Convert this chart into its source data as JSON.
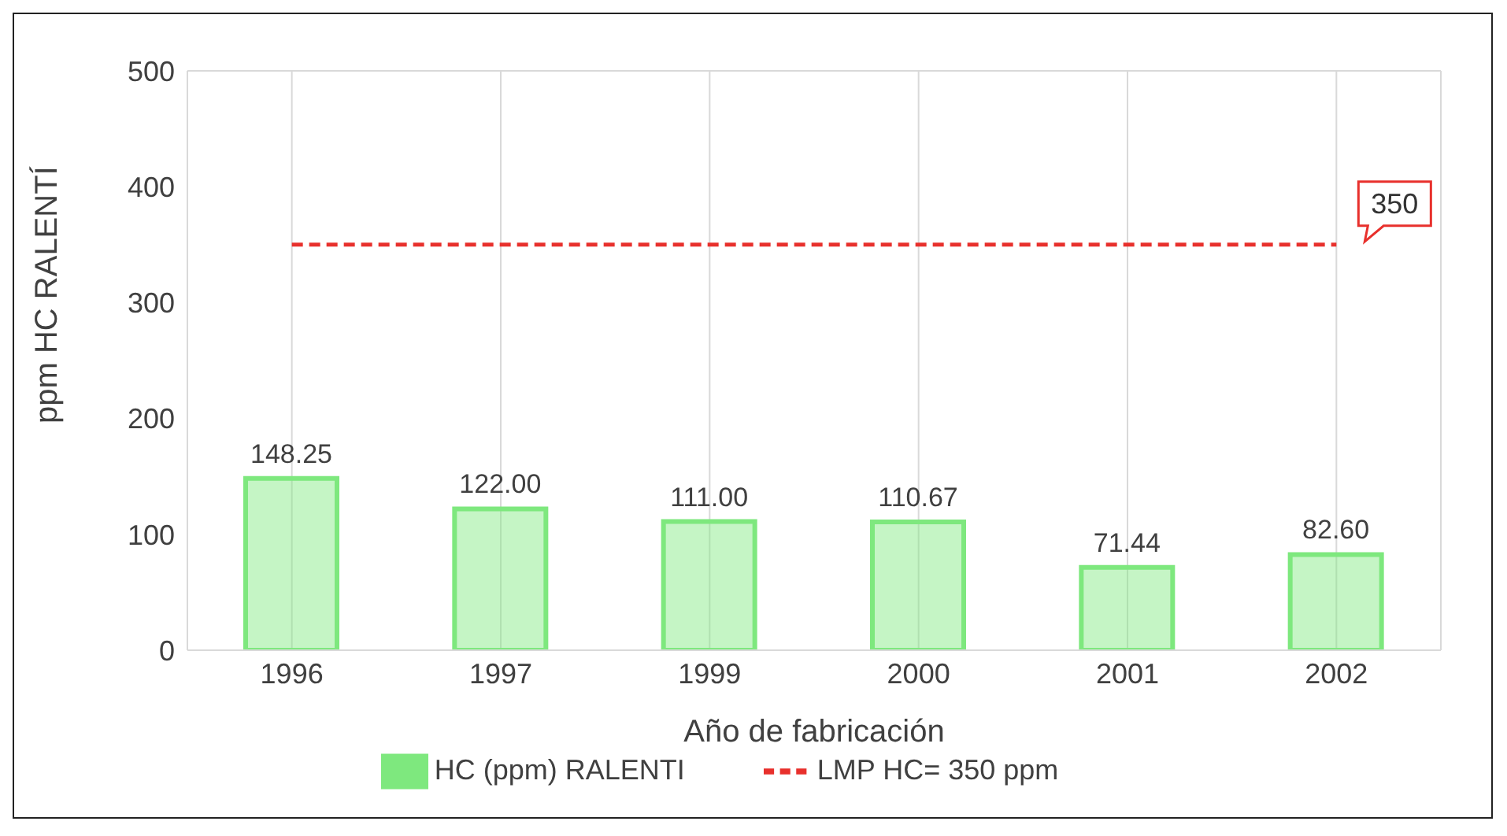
{
  "chart_data": {
    "type": "bar",
    "xlabel": "Año de fabricación",
    "ylabel": "ppm HC RALENTÍ",
    "categories": [
      "1996",
      "1997",
      "1999",
      "2000",
      "2001",
      "2002"
    ],
    "series": [
      {
        "name": "HC (ppm) RALENTI",
        "color": "#7ee87e",
        "values": [
          148.25,
          122.0,
          111.0,
          110.67,
          71.44,
          82.6
        ],
        "value_labels": [
          "148.25",
          "122.00",
          "111.00",
          "110.67",
          "71.44",
          "82.60"
        ]
      },
      {
        "name": "LMP HC= 350 ppm",
        "type": "line",
        "color": "#e8302c",
        "line_style": "dashed",
        "values": [
          350,
          350,
          350,
          350,
          350,
          350
        ]
      }
    ],
    "annotations": [
      {
        "text": "350",
        "x": "2002",
        "y": 350
      }
    ],
    "ylim": [
      0,
      500
    ],
    "yticks": [
      0,
      100,
      200,
      300,
      400,
      500
    ],
    "grid": true,
    "legend": "bottom"
  }
}
